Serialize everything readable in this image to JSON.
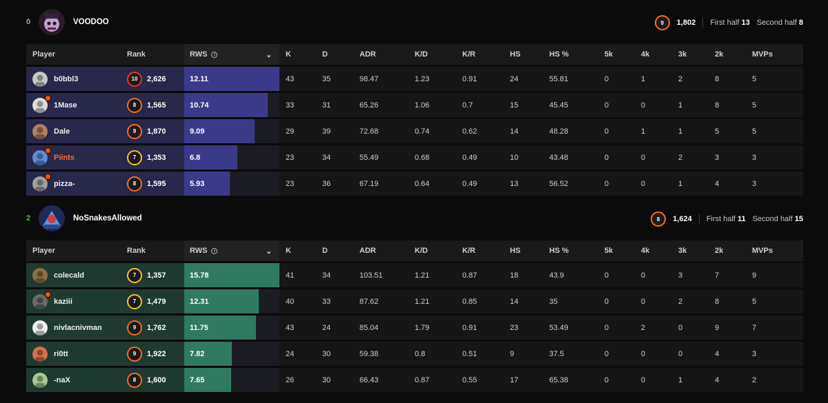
{
  "teams": [
    {
      "score": "0",
      "score_color": "#a0a0a0",
      "name": "VOODOO",
      "avg_elo": "1,802",
      "avg_level": "9",
      "first_half_label": "First half",
      "first_half": "13",
      "second_half_label": "Second half",
      "second_half": "8",
      "row_color": "#27284a",
      "fill_color": "#3b3a8a",
      "columns": [
        "Player",
        "Rank",
        "RWS",
        "K",
        "D",
        "ADR",
        "K/D",
        "K/R",
        "HS",
        "HS %",
        "5k",
        "4k",
        "3k",
        "2k",
        "MVPs"
      ],
      "players": [
        {
          "name": "b0bbl3",
          "level": "10",
          "elo": "2,626",
          "rws": "12.11",
          "rws_frac": 1.0,
          "k": "43",
          "d": "35",
          "adr": "98.47",
          "kd": "1.23",
          "kr": "0.91",
          "hs": "24",
          "hsp": "55.81",
          "k5": "0",
          "k4": "1",
          "k3": "2",
          "k2": "8",
          "mvps": "5",
          "flag": false,
          "name_color": "#f0f0f0",
          "avatar_color": "#c8c8c8"
        },
        {
          "name": "1Mase",
          "level": "8",
          "elo": "1,565",
          "rws": "10.74",
          "rws_frac": 0.88,
          "k": "33",
          "d": "31",
          "adr": "65.26",
          "kd": "1.06",
          "kr": "0.7",
          "hs": "15",
          "hsp": "45.45",
          "k5": "0",
          "k4": "0",
          "k3": "1",
          "k2": "8",
          "mvps": "5",
          "flag": true,
          "name_color": "#f0f0f0",
          "avatar_color": "#dcdcdc"
        },
        {
          "name": "Dale",
          "level": "9",
          "elo": "1,870",
          "rws": "9.09",
          "rws_frac": 0.74,
          "k": "29",
          "d": "39",
          "adr": "72.68",
          "kd": "0.74",
          "kr": "0.62",
          "hs": "14",
          "hsp": "48.28",
          "k5": "0",
          "k4": "1",
          "k3": "1",
          "k2": "5",
          "mvps": "5",
          "flag": false,
          "name_color": "#f0f0f0",
          "avatar_color": "#b08060"
        },
        {
          "name": "Piints",
          "level": "7",
          "elo": "1,353",
          "rws": "6.8",
          "rws_frac": 0.56,
          "k": "23",
          "d": "34",
          "adr": "55.49",
          "kd": "0.68",
          "kr": "0.49",
          "hs": "10",
          "hsp": "43.48",
          "k5": "0",
          "k4": "0",
          "k3": "2",
          "k2": "3",
          "mvps": "3",
          "flag": true,
          "name_color": "#ff6a2b",
          "avatar_color": "#5c8bd6"
        },
        {
          "name": "pizza-",
          "level": "8",
          "elo": "1,595",
          "rws": "5.93",
          "rws_frac": 0.48,
          "k": "23",
          "d": "36",
          "adr": "67.19",
          "kd": "0.64",
          "kr": "0.49",
          "hs": "13",
          "hsp": "56.52",
          "k5": "0",
          "k4": "0",
          "k3": "1",
          "k2": "4",
          "mvps": "3",
          "flag": true,
          "name_color": "#f0f0f0",
          "avatar_color": "#a0a0a0"
        }
      ]
    },
    {
      "score": "2",
      "score_color": "#3ad13a",
      "name": "NoSnakesAllowed",
      "avg_elo": "1,624",
      "avg_level": "8",
      "first_half_label": "First half",
      "first_half": "11",
      "second_half_label": "Second half",
      "second_half": "15",
      "row_color": "#1f3a30",
      "fill_color": "#2f7a60",
      "columns": [
        "Player",
        "Rank",
        "RWS",
        "K",
        "D",
        "ADR",
        "K/D",
        "K/R",
        "HS",
        "HS %",
        "5k",
        "4k",
        "3k",
        "2k",
        "MVPs"
      ],
      "players": [
        {
          "name": "colecald",
          "level": "7",
          "elo": "1,357",
          "rws": "15.78",
          "rws_frac": 1.0,
          "k": "41",
          "d": "34",
          "adr": "103.51",
          "kd": "1.21",
          "kr": "0.87",
          "hs": "18",
          "hsp": "43.9",
          "k5": "0",
          "k4": "0",
          "k3": "3",
          "k2": "7",
          "mvps": "9",
          "flag": false,
          "name_color": "#f0f0f0",
          "avatar_color": "#8a7040"
        },
        {
          "name": "kaziii",
          "level": "7",
          "elo": "1,479",
          "rws": "12.31",
          "rws_frac": 0.78,
          "k": "40",
          "d": "33",
          "adr": "87.62",
          "kd": "1.21",
          "kr": "0.85",
          "hs": "14",
          "hsp": "35",
          "k5": "0",
          "k4": "0",
          "k3": "2",
          "k2": "8",
          "mvps": "5",
          "flag": true,
          "name_color": "#f0f0f0",
          "avatar_color": "#6a6a6a"
        },
        {
          "name": "nivlacnivman",
          "level": "9",
          "elo": "1,762",
          "rws": "11.75",
          "rws_frac": 0.75,
          "k": "43",
          "d": "24",
          "adr": "85.04",
          "kd": "1.79",
          "kr": "0.91",
          "hs": "23",
          "hsp": "53.49",
          "k5": "0",
          "k4": "2",
          "k3": "0",
          "k2": "9",
          "mvps": "7",
          "flag": false,
          "name_color": "#f0f0f0",
          "avatar_color": "#f0f0f0"
        },
        {
          "name": "ri0tt",
          "level": "9",
          "elo": "1,922",
          "rws": "7.82",
          "rws_frac": 0.5,
          "k": "24",
          "d": "30",
          "adr": "59.38",
          "kd": "0.8",
          "kr": "0.51",
          "hs": "9",
          "hsp": "37.5",
          "k5": "0",
          "k4": "0",
          "k3": "0",
          "k2": "4",
          "mvps": "3",
          "flag": false,
          "name_color": "#f0f0f0",
          "avatar_color": "#d9704a"
        },
        {
          "name": "-naX",
          "level": "8",
          "elo": "1,600",
          "rws": "7.65",
          "rws_frac": 0.49,
          "k": "26",
          "d": "30",
          "adr": "66.43",
          "kd": "0.87",
          "kr": "0.55",
          "hs": "17",
          "hsp": "65.38",
          "k5": "0",
          "k4": "0",
          "k3": "1",
          "k2": "4",
          "mvps": "2",
          "flag": false,
          "name_color": "#f0f0f0",
          "avatar_color": "#a8c890"
        }
      ]
    }
  ]
}
